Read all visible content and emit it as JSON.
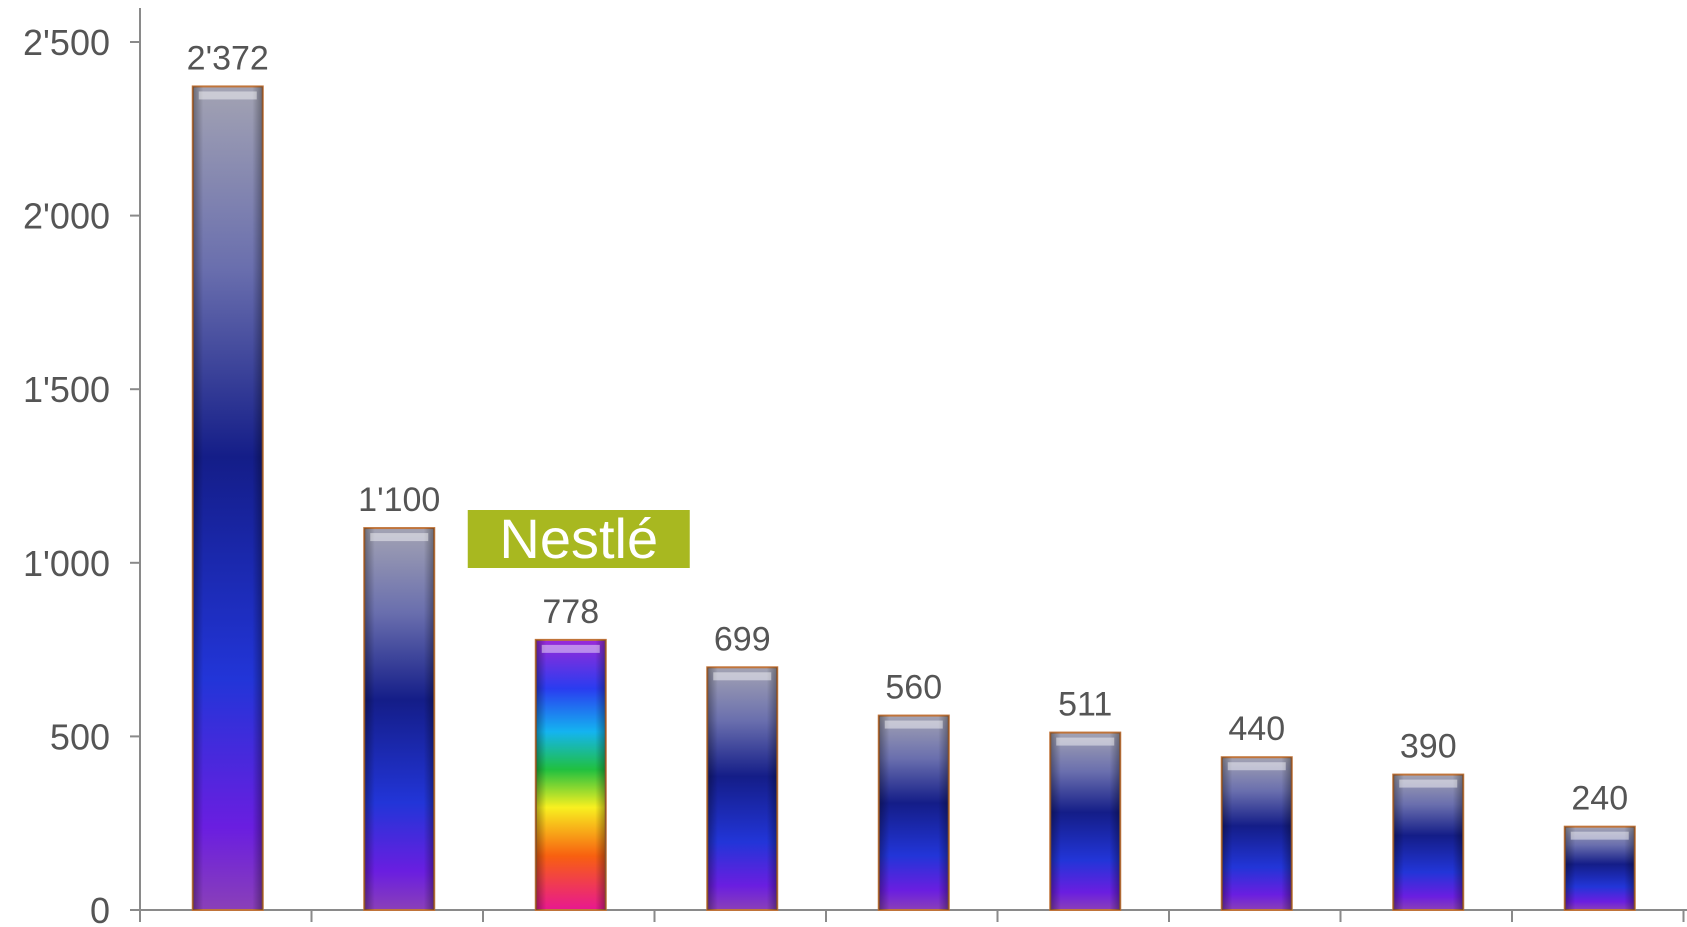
{
  "chart_data": {
    "type": "bar",
    "title": "",
    "xlabel": "",
    "ylabel": "",
    "ylim": [
      0,
      2500
    ],
    "yticks": [
      0,
      500,
      1000,
      1500,
      2000,
      2500
    ],
    "ytick_labels": [
      "0",
      "500",
      "1'000",
      "1'500",
      "2'000",
      "2'500"
    ],
    "values": [
      2372,
      1100,
      778,
      699,
      560,
      511,
      440,
      390,
      240
    ],
    "value_labels": [
      "2'372",
      "1'100",
      "778",
      "699",
      "560",
      "511",
      "440",
      "390",
      "240"
    ],
    "highlight_index": 2,
    "highlight_label": "Nestlé",
    "grid": false,
    "legend": "none"
  },
  "colors": {
    "axis": "#8a8a8a",
    "label_text": "#555555",
    "bar_outline": "#c0743a",
    "highlight_badge": "#a8b820"
  }
}
